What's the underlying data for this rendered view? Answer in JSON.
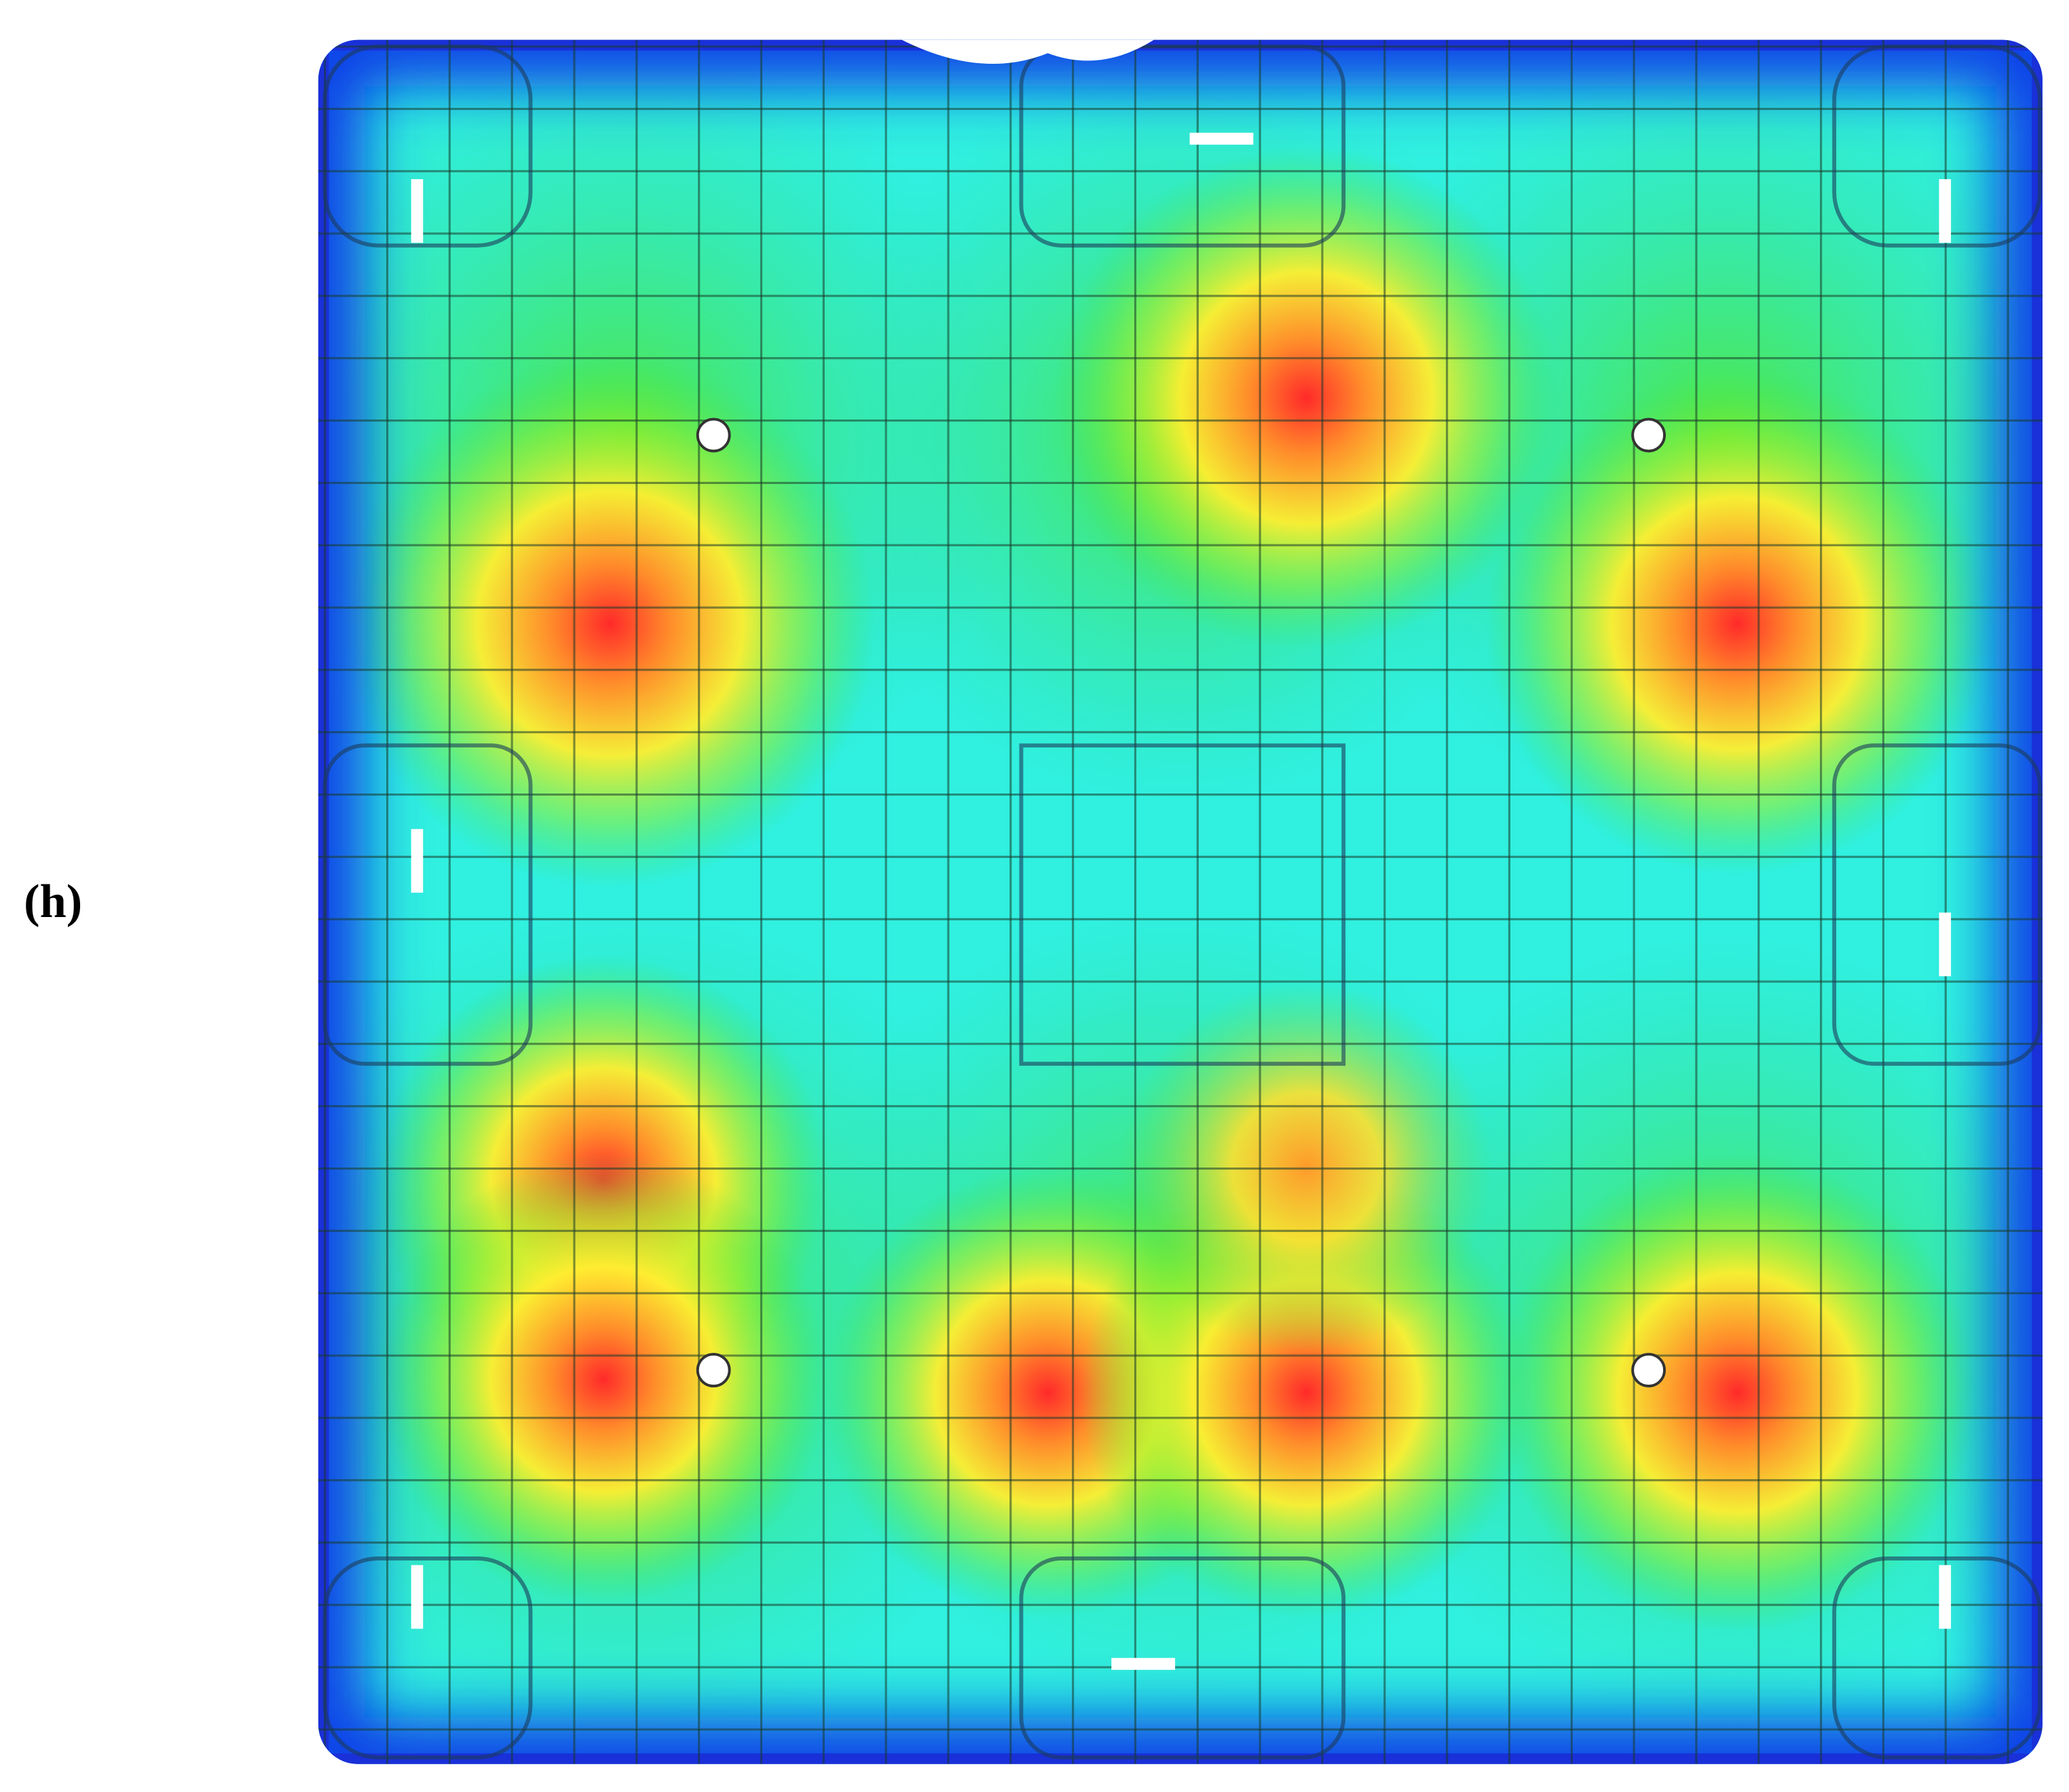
{
  "label": "(h)"
}
